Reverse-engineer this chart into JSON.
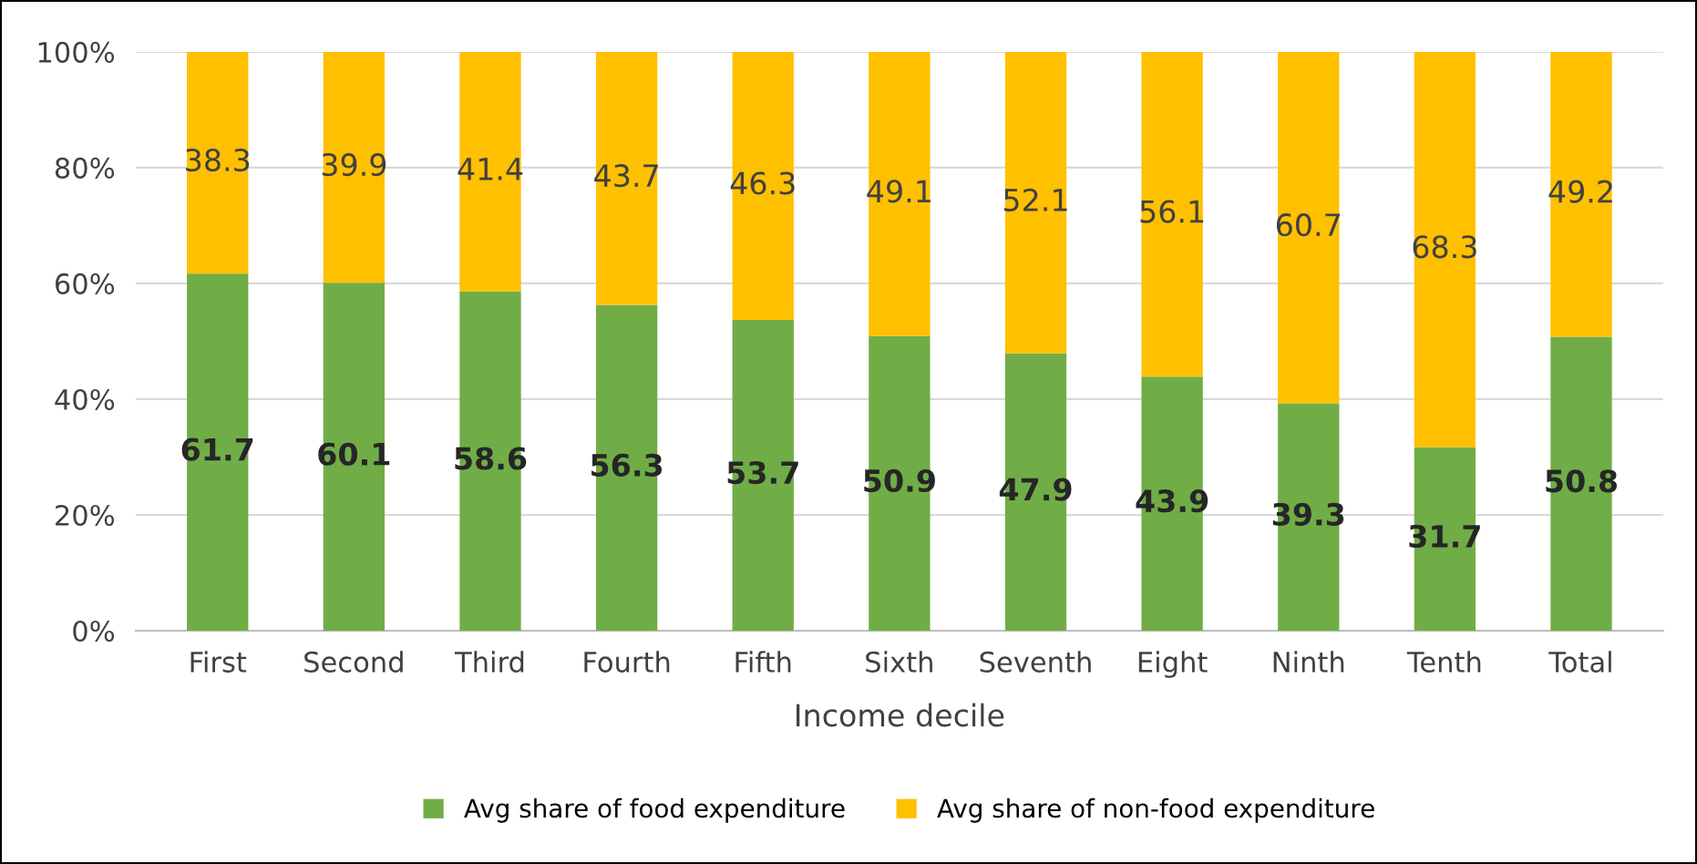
{
  "chart_data": {
    "type": "bar",
    "stacked": true,
    "xlabel": "Income decile",
    "categories": [
      "First",
      "Second",
      "Third",
      "Fourth",
      "Fifth",
      "Sixth",
      "Seventh",
      "Eight",
      "Ninth",
      "Tenth",
      "Total"
    ],
    "series": [
      {
        "name": "Avg share of food expenditure",
        "color": "#70ad47",
        "values": [
          61.7,
          60.1,
          58.6,
          56.3,
          53.7,
          50.9,
          47.9,
          43.9,
          39.3,
          31.7,
          50.8
        ]
      },
      {
        "name": "Avg share of non-food expenditure",
        "color": "#ffc000",
        "values": [
          38.3,
          39.9,
          41.4,
          43.7,
          46.3,
          49.1,
          52.1,
          56.1,
          60.7,
          68.3,
          49.2
        ]
      }
    ],
    "ylim": [
      0,
      100
    ],
    "yticks": [
      {
        "value": 0,
        "label": "0%"
      },
      {
        "value": 20,
        "label": "20%"
      },
      {
        "value": 40,
        "label": "40%"
      },
      {
        "value": 60,
        "label": "60%"
      },
      {
        "value": 80,
        "label": "80%"
      },
      {
        "value": 100,
        "label": "100%"
      }
    ],
    "grid": "y",
    "legend": "bottom",
    "data_labels": true
  }
}
